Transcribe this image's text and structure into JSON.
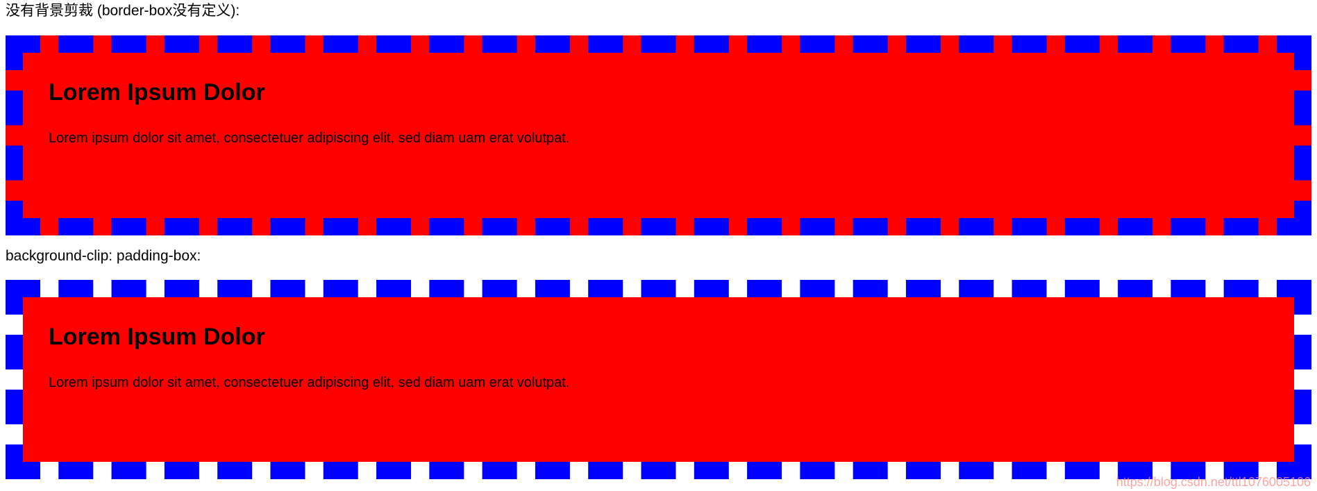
{
  "page": {
    "background": "#ffffff"
  },
  "colors": {
    "page-white": "#ffffff",
    "border-blue": "#0000ff",
    "box-red": "#ff0000",
    "text-black": "#000000",
    "watermark-pink": "rgba(255,140,140,0.78)"
  },
  "sections": [
    {
      "label": "没有背景剪裁 (border-box没有定义):",
      "clip_mode": "border-box",
      "heading": "Lorem Ipsum Dolor",
      "paragraph": "Lorem ipsum dolor sit amet, consectetuer adipiscing elit, sed diam uam erat volutpat."
    },
    {
      "label": "background-clip: padding-box:",
      "clip_mode": "padding-box",
      "heading": "Lorem Ipsum Dolor",
      "paragraph": "Lorem ipsum dolor sit amet, consectetuer adipiscing elit, sed diam uam erat volutpat."
    }
  ],
  "watermark": {
    "text": "https://blog.csdn.net/ttl1076005106"
  }
}
